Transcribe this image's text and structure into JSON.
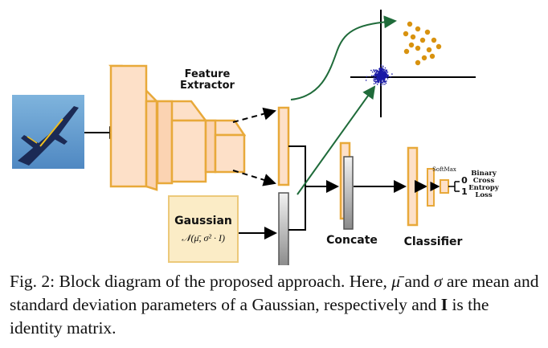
{
  "labels": {
    "feature_extractor_line1": "Feature",
    "feature_extractor_line2": "Extractor",
    "gaussian_title": "Gaussian",
    "gaussian_formula": "𝒩(μ̄, σ² · I)",
    "concate": "Concate",
    "classifier": "Classifier",
    "softmax": "SoftMax",
    "output_zero": "0",
    "output_one": "1",
    "loss_line1": "Binary",
    "loss_line2": "Cross",
    "loss_line3": "Entropy",
    "loss_line4": "Loss"
  },
  "caption": {
    "prefix": "Fig. 2: Block diagram of the proposed approach. Here, ",
    "mu": "μ̄",
    "middle1": " and ",
    "sigma": "σ",
    "middle2": " are mean and standard deviation parameters of a Gaussian, respectively and ",
    "identity": "I",
    "suffix": " is the identity matrix."
  },
  "colors": {
    "block_fill": "#fde0c8",
    "block_stroke": "#e8a93a",
    "gauss_fill": "#fbecc6",
    "gray_fill": "#b0b0b0",
    "green_arrow": "#1f6b3a",
    "scatter_blue": "#1a1aa6",
    "scatter_orange": "#d8920f"
  },
  "icons": {
    "input_image": "fighter-jet-photo"
  }
}
